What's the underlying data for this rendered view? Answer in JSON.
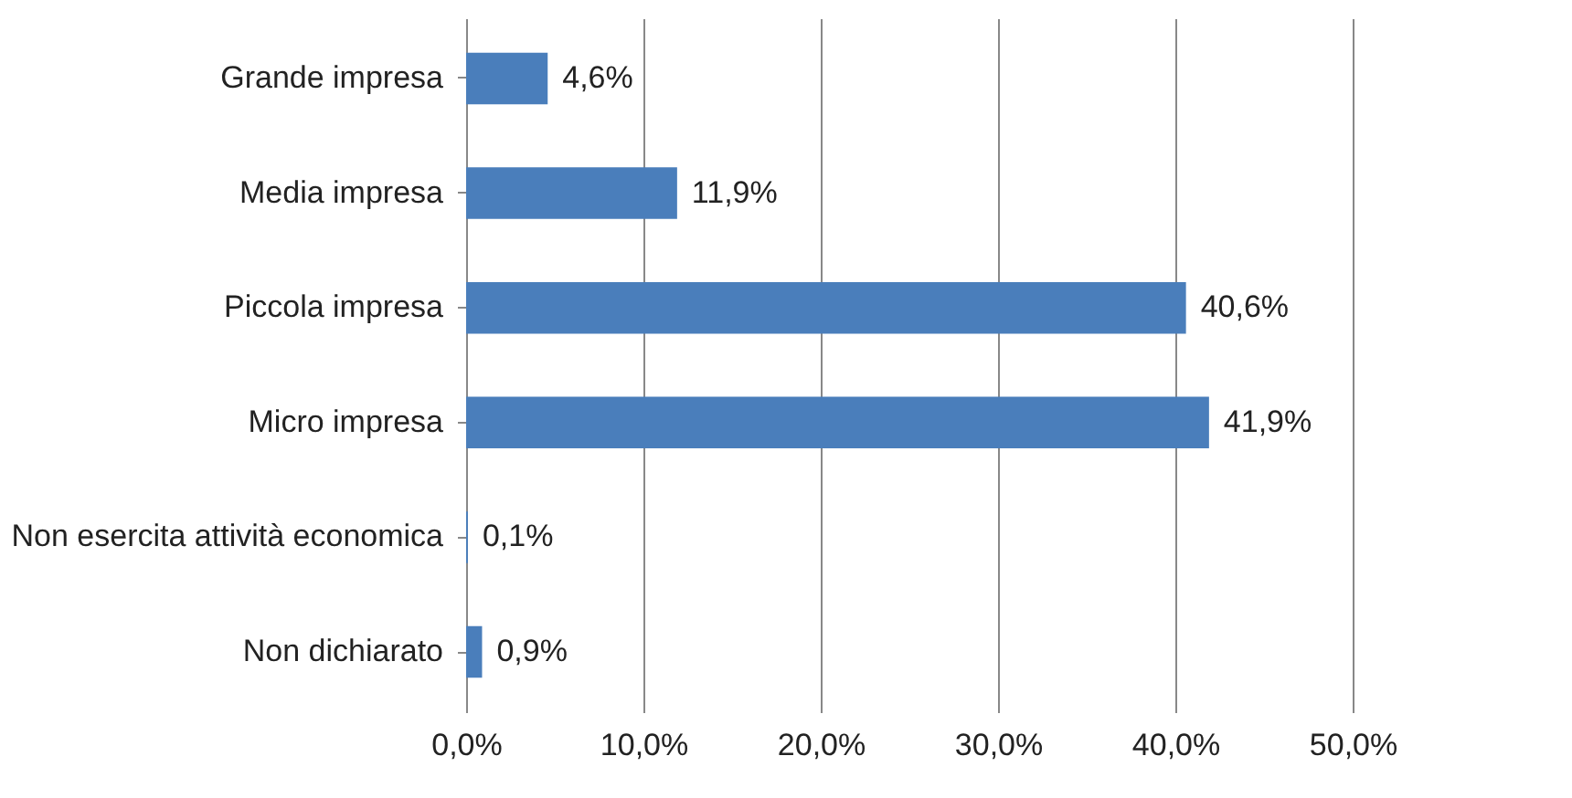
{
  "chart_data": {
    "type": "bar",
    "orientation": "horizontal",
    "categories": [
      "Grande impresa",
      "Media impresa",
      "Piccola impresa",
      "Micro impresa",
      "Non esercita attività economica",
      "Non dichiarato"
    ],
    "values": [
      4.6,
      11.9,
      40.6,
      41.9,
      0.1,
      0.9
    ],
    "value_labels": [
      "4,6%",
      "11,9%",
      "40,6%",
      "41,9%",
      "0,1%",
      "0,9%"
    ],
    "color": "#4a7ebb",
    "xlim": [
      0,
      50
    ],
    "xticks": [
      {
        "value": 0,
        "label": "0,0%"
      },
      {
        "value": 10,
        "label": "10,0%"
      },
      {
        "value": 20,
        "label": "20,0%"
      },
      {
        "value": 30,
        "label": "30,0%"
      },
      {
        "value": 40,
        "label": "40,0%"
      },
      {
        "value": 50,
        "label": "50,0%"
      }
    ],
    "grid": "x"
  }
}
